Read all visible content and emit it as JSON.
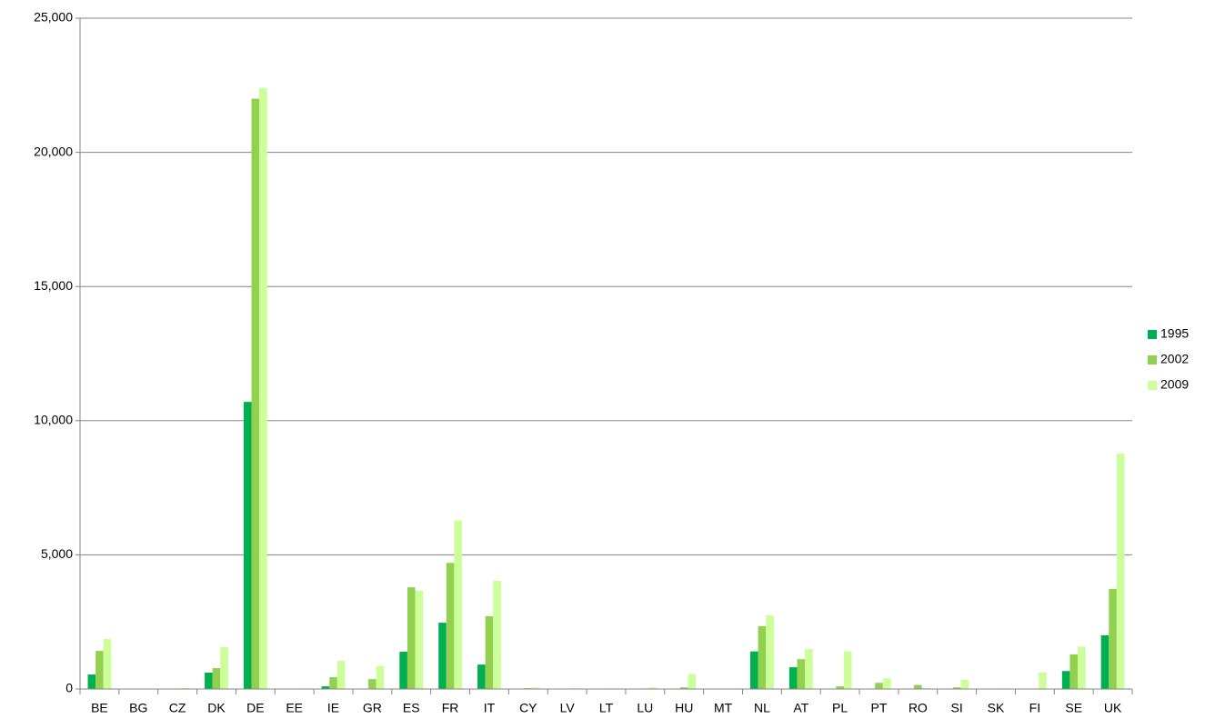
{
  "chart_data": {
    "type": "bar",
    "categories": [
      "BE",
      "BG",
      "CZ",
      "DK",
      "DE",
      "EE",
      "IE",
      "GR",
      "ES",
      "FR",
      "IT",
      "CY",
      "LV",
      "LT",
      "LU",
      "HU",
      "MT",
      "NL",
      "AT",
      "PL",
      "PT",
      "RO",
      "SI",
      "SK",
      "FI",
      "SE",
      "UK"
    ],
    "series": [
      {
        "name": "1995",
        "color": "#00b050",
        "values": [
          540,
          0,
          0,
          610,
          10700,
          0,
          100,
          0,
          1390,
          2470,
          910,
          0,
          0,
          0,
          0,
          0,
          0,
          1400,
          810,
          0,
          0,
          0,
          0,
          0,
          0,
          670,
          2000
        ]
      },
      {
        "name": "2002",
        "color": "#92d050",
        "values": [
          1420,
          5,
          10,
          780,
          22000,
          10,
          440,
          370,
          3790,
          4700,
          2710,
          30,
          10,
          10,
          20,
          60,
          0,
          2340,
          1110,
          100,
          230,
          150,
          60,
          10,
          10,
          1290,
          3730
        ]
      },
      {
        "name": "2009",
        "color": "#ccff99",
        "values": [
          1860,
          10,
          40,
          1560,
          22400,
          20,
          1050,
          850,
          3660,
          6280,
          4030,
          50,
          30,
          20,
          60,
          560,
          0,
          2740,
          1490,
          1400,
          400,
          30,
          350,
          20,
          620,
          1580,
          8770
        ]
      }
    ],
    "ylim": [
      0,
      25000
    ],
    "yticks": [
      0,
      {
        "value": 5000,
        "label": "5,000"
      },
      {
        "value": 10000,
        "label": "10,000"
      },
      {
        "value": 15000,
        "label": "15,000"
      },
      {
        "value": 20000,
        "label": "20,000"
      },
      {
        "value": 25000,
        "label": "25,000"
      }
    ],
    "grid": true,
    "legend": "right"
  }
}
